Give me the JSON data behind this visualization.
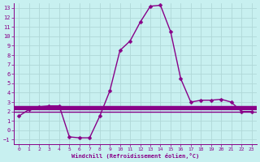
{
  "title": "",
  "xlabel": "Windchill (Refroidissement éolien,°C)",
  "bg_color": "#c8f0f0",
  "grid_color": "#b0d8d8",
  "line_color": "#880088",
  "xlim": [
    -0.5,
    23.5
  ],
  "ylim": [
    -1.5,
    13.5
  ],
  "xticks": [
    0,
    1,
    2,
    3,
    4,
    5,
    6,
    7,
    8,
    9,
    10,
    11,
    12,
    13,
    14,
    15,
    16,
    17,
    18,
    19,
    20,
    21,
    22,
    23
  ],
  "yticks": [
    -1,
    0,
    1,
    2,
    3,
    4,
    5,
    6,
    7,
    8,
    9,
    10,
    11,
    12,
    13
  ],
  "main_x": [
    0,
    1,
    2,
    3,
    4,
    5,
    6,
    7,
    8,
    9,
    10,
    11,
    12,
    13,
    14,
    15,
    16,
    17,
    18,
    19,
    20,
    21,
    22,
    23
  ],
  "main_y": [
    1.5,
    2.2,
    2.5,
    2.6,
    2.6,
    -0.7,
    -0.8,
    -0.8,
    1.5,
    4.2,
    8.5,
    9.5,
    11.5,
    13.2,
    13.3,
    10.5,
    5.5,
    3.0,
    3.2,
    3.2,
    3.3,
    3.0,
    2.0,
    2.0
  ],
  "hlines": [
    {
      "y": 2.5,
      "lw": 2.5
    },
    {
      "y": 2.2,
      "lw": 1.5
    },
    {
      "y": 2.0,
      "lw": 1.0
    }
  ],
  "marker": "D",
  "markersize": 2.5,
  "linewidth": 1.0
}
